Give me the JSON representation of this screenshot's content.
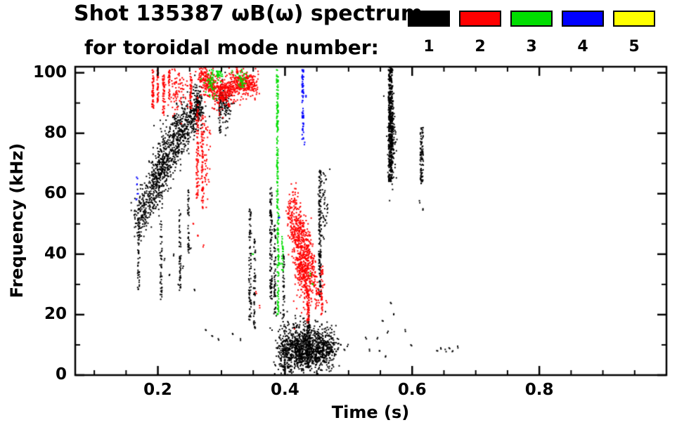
{
  "title": {
    "line1": "Shot 135387 ωB(ω) spectrum",
    "line2": "for toroidal mode number:"
  },
  "legend": {
    "modes": [
      {
        "label": "1",
        "color": "#000000"
      },
      {
        "label": "2",
        "color": "#ff0000"
      },
      {
        "label": "3",
        "color": "#00dd00"
      },
      {
        "label": "4",
        "color": "#0000ff"
      },
      {
        "label": "5",
        "color": "#ffff00"
      }
    ]
  },
  "axes": {
    "xlabel": "Time (s)",
    "ylabel": "Frequency (kHz)",
    "xlim": [
      0.07,
      1.0
    ],
    "ylim": [
      0,
      102
    ],
    "x_major": [
      {
        "v": 0.2,
        "label": "0.2"
      },
      {
        "v": 0.4,
        "label": "0.4"
      },
      {
        "v": 0.6,
        "label": "0.6"
      },
      {
        "v": 0.8,
        "label": "0.8"
      }
    ],
    "y_major": [
      {
        "v": 0,
        "label": "0"
      },
      {
        "v": 20,
        "label": "20"
      },
      {
        "v": 40,
        "label": "40"
      },
      {
        "v": 60,
        "label": "60"
      },
      {
        "v": 80,
        "label": "80"
      },
      {
        "v": 100,
        "label": "100"
      }
    ],
    "x_minor_step": 0.05,
    "y_minor_step": 10
  },
  "chart_data": {
    "type": "scatter",
    "title": "Shot 135387 ωB(ω) spectrum for toroidal mode number: 1-5",
    "xlabel": "Time (s)",
    "ylabel": "Frequency (kHz)",
    "xlim": [
      0.07,
      1.0
    ],
    "ylim": [
      0,
      100
    ],
    "grid": false,
    "legend_position": "top-right",
    "series": [
      {
        "name": "n=1",
        "color": "#000000",
        "clusters": [
          {
            "shape": "vline",
            "x": 0.17,
            "w": 0.004,
            "y0": 28,
            "y1": 60,
            "n": 60
          },
          {
            "shape": "band",
            "x0": 0.166,
            "y0": 50,
            "x1": 0.2,
            "y1": 64,
            "sx": 0.004,
            "sy": 4,
            "n": 260
          },
          {
            "shape": "band",
            "x0": 0.195,
            "y0": 65,
            "x1": 0.245,
            "y1": 84,
            "sx": 0.005,
            "sy": 4.5,
            "n": 620
          },
          {
            "shape": "band",
            "x0": 0.245,
            "y0": 82,
            "x1": 0.266,
            "y1": 88,
            "sx": 0.003,
            "sy": 3,
            "n": 150
          },
          {
            "shape": "blob",
            "cx": 0.262,
            "cy": 89,
            "rx": 0.005,
            "ry": 3.5,
            "n": 120
          },
          {
            "shape": "vline",
            "x": 0.205,
            "w": 0.003,
            "y0": 25,
            "y1": 50,
            "n": 45
          },
          {
            "shape": "vline",
            "x": 0.235,
            "w": 0.003,
            "y0": 28,
            "y1": 55,
            "n": 50
          },
          {
            "shape": "vline",
            "x": 0.248,
            "w": 0.0025,
            "y0": 40,
            "y1": 62,
            "n": 40
          },
          {
            "shape": "dots",
            "points": [
              [
                0.21,
                38
              ],
              [
                0.218,
                33
              ],
              [
                0.225,
                40
              ],
              [
                0.232,
                30
              ],
              [
                0.24,
                36
              ],
              [
                0.252,
                42
              ],
              [
                0.258,
                28
              ]
            ]
          },
          {
            "shape": "blob",
            "cx": 0.305,
            "cy": 90,
            "rx": 0.006,
            "ry": 4,
            "n": 110
          },
          {
            "shape": "vline",
            "x": 0.298,
            "w": 0.003,
            "y0": 80,
            "y1": 94,
            "n": 40
          },
          {
            "shape": "dots",
            "points": [
              [
                0.275,
                15
              ],
              [
                0.285,
                13
              ],
              [
                0.295,
                12
              ],
              [
                0.318,
                13.5
              ],
              [
                0.33,
                12
              ]
            ]
          },
          {
            "shape": "vline",
            "x": 0.345,
            "w": 0.004,
            "y0": 18,
            "y1": 55,
            "n": 85
          },
          {
            "shape": "vline",
            "x": 0.352,
            "w": 0.003,
            "y0": 15,
            "y1": 45,
            "n": 55
          },
          {
            "shape": "vline",
            "x": 0.378,
            "w": 0.0035,
            "y0": 25,
            "y1": 62,
            "n": 100
          },
          {
            "shape": "vline",
            "x": 0.384,
            "w": 0.003,
            "y0": 20,
            "y1": 50,
            "n": 60
          },
          {
            "shape": "vline",
            "x": 0.398,
            "w": 0.0025,
            "y0": 15,
            "y1": 40,
            "n": 40
          },
          {
            "shape": "band",
            "x0": 0.392,
            "y0": 7,
            "x1": 0.478,
            "y1": 9,
            "sx": 0.004,
            "sy": 3.2,
            "n": 850
          },
          {
            "shape": "blob",
            "cx": 0.428,
            "cy": 10,
            "rx": 0.02,
            "ry": 4.5,
            "n": 400
          },
          {
            "shape": "vline",
            "x": 0.437,
            "w": 0.004,
            "y0": 2,
            "y1": 18,
            "n": 70
          },
          {
            "shape": "vline",
            "x": 0.455,
            "w": 0.004,
            "y0": 25,
            "y1": 68,
            "n": 150
          },
          {
            "shape": "blob",
            "cx": 0.462,
            "cy": 56,
            "rx": 0.004,
            "ry": 6,
            "n": 50
          },
          {
            "shape": "dots",
            "points": [
              [
                0.484,
                9
              ],
              [
                0.488,
                10
              ],
              [
                0.493,
                8.5
              ],
              [
                0.498,
                9.5
              ]
            ]
          },
          {
            "shape": "vline",
            "x": 0.566,
            "w": 0.006,
            "y0": 64,
            "y1": 102,
            "n": 260,
            "s": 2.5
          },
          {
            "shape": "blob",
            "cx": 0.568,
            "cy": 78,
            "rx": 0.003,
            "ry": 7,
            "n": 140
          },
          {
            "shape": "vline",
            "x": 0.615,
            "w": 0.005,
            "y0": 63,
            "y1": 82,
            "n": 90
          },
          {
            "shape": "dots",
            "points": [
              [
                0.545,
                12
              ],
              [
                0.549,
                8
              ],
              [
                0.553,
                18
              ],
              [
                0.558,
                6
              ],
              [
                0.561,
                14
              ],
              [
                0.566,
                24
              ],
              [
                0.571,
                20
              ],
              [
                0.589,
                15
              ],
              [
                0.598,
                10
              ],
              [
                0.612,
                57
              ],
              [
                0.617,
                55
              ],
              [
                0.528,
                12
              ],
              [
                0.533,
                8
              ]
            ]
          },
          {
            "shape": "dots",
            "points": [
              [
                0.64,
                8
              ],
              [
                0.645,
                9
              ],
              [
                0.652,
                8.5
              ],
              [
                0.658,
                9
              ],
              [
                0.664,
                8
              ],
              [
                0.672,
                9
              ]
            ]
          }
        ]
      },
      {
        "name": "n=2",
        "color": "#ff0000",
        "clusters": [
          {
            "shape": "vline",
            "x": 0.192,
            "w": 0.003,
            "y0": 88,
            "y1": 101,
            "n": 55
          },
          {
            "shape": "vline",
            "x": 0.2,
            "w": 0.0025,
            "y0": 90,
            "y1": 101,
            "n": 40
          },
          {
            "shape": "vline",
            "x": 0.209,
            "w": 0.003,
            "y0": 86,
            "y1": 100,
            "n": 50
          },
          {
            "shape": "vline",
            "x": 0.218,
            "w": 0.002,
            "y0": 92,
            "y1": 101,
            "n": 30
          },
          {
            "shape": "blob",
            "cx": 0.232,
            "cy": 93,
            "rx": 0.008,
            "ry": 4,
            "n": 85
          },
          {
            "shape": "vline",
            "x": 0.252,
            "w": 0.003,
            "y0": 88,
            "y1": 100,
            "n": 45
          },
          {
            "shape": "vline",
            "x": 0.262,
            "w": 0.0035,
            "y0": 58,
            "y1": 92,
            "n": 85
          },
          {
            "shape": "vline",
            "x": 0.27,
            "w": 0.003,
            "y0": 55,
            "y1": 86,
            "n": 65
          },
          {
            "shape": "blob",
            "cx": 0.274,
            "cy": 72,
            "rx": 0.004,
            "ry": 7,
            "n": 60
          },
          {
            "shape": "dots",
            "points": [
              [
                0.256,
                50
              ],
              [
                0.263,
                46
              ],
              [
                0.272,
                43
              ]
            ]
          },
          {
            "shape": "band",
            "x0": 0.268,
            "y0": 99,
            "x1": 0.298,
            "y1": 93,
            "sx": 0.004,
            "sy": 2.4,
            "n": 280
          },
          {
            "shape": "band",
            "x0": 0.298,
            "y0": 93,
            "x1": 0.33,
            "y1": 97,
            "sx": 0.004,
            "sy": 2.4,
            "n": 280
          },
          {
            "shape": "band",
            "x0": 0.33,
            "y0": 97,
            "x1": 0.356,
            "y1": 96,
            "sx": 0.004,
            "sy": 2.0,
            "n": 190
          },
          {
            "shape": "dots",
            "points": [
              [
                0.289,
                88
              ],
              [
                0.297,
                86
              ],
              [
                0.312,
                89
              ],
              [
                0.355,
                27
              ],
              [
                0.36,
                23
              ]
            ]
          },
          {
            "shape": "band",
            "x0": 0.405,
            "y0": 54,
            "x1": 0.437,
            "y1": 28,
            "sx": 0.003,
            "sy": 3,
            "n": 260
          },
          {
            "shape": "band",
            "x0": 0.412,
            "y0": 58,
            "x1": 0.446,
            "y1": 36,
            "sx": 0.003,
            "sy": 3,
            "n": 200
          },
          {
            "shape": "band",
            "x0": 0.42,
            "y0": 48,
            "x1": 0.452,
            "y1": 25,
            "sx": 0.003,
            "sy": 2.5,
            "n": 150
          },
          {
            "shape": "blob",
            "cx": 0.428,
            "cy": 35,
            "rx": 0.007,
            "ry": 6,
            "n": 180
          },
          {
            "shape": "vline",
            "x": 0.436,
            "w": 0.004,
            "y0": 18,
            "y1": 28,
            "n": 60
          },
          {
            "shape": "vline",
            "x": 0.458,
            "w": 0.003,
            "y0": 20,
            "y1": 36,
            "n": 40
          },
          {
            "shape": "dots",
            "points": [
              [
                0.448,
                22
              ],
              [
                0.452,
                27
              ],
              [
                0.462,
                30
              ],
              [
                0.466,
                24
              ]
            ]
          }
        ]
      },
      {
        "name": "n=3",
        "color": "#00dd00",
        "clusters": [
          {
            "shape": "vline",
            "x": 0.388,
            "w": 0.0025,
            "y0": 55,
            "y1": 101,
            "n": 150
          },
          {
            "shape": "vline",
            "x": 0.389,
            "w": 0.0025,
            "y0": 20,
            "y1": 55,
            "n": 90
          },
          {
            "shape": "vline",
            "x": 0.396,
            "w": 0.002,
            "y0": 34,
            "y1": 46,
            "n": 25
          },
          {
            "shape": "blob",
            "cx": 0.285,
            "cy": 97,
            "rx": 0.005,
            "ry": 2.5,
            "n": 55
          },
          {
            "shape": "blob",
            "cx": 0.297,
            "cy": 99,
            "rx": 0.003,
            "ry": 1.5,
            "n": 30
          },
          {
            "shape": "blob",
            "cx": 0.332,
            "cy": 98,
            "rx": 0.004,
            "ry": 2,
            "n": 40
          },
          {
            "shape": "dots",
            "points": [
              [
                0.316,
                100
              ],
              [
                0.44,
                33
              ],
              [
                0.444,
                30
              ],
              [
                0.392,
                37
              ],
              [
                0.35,
                40
              ]
            ]
          }
        ]
      },
      {
        "name": "n=4",
        "color": "#0000ff",
        "clusters": [
          {
            "shape": "dots",
            "points": [
              [
                0.167,
                63
              ],
              [
                0.169,
                60
              ],
              [
                0.168,
                65
              ],
              [
                0.166,
                58
              ]
            ]
          },
          {
            "shape": "vline",
            "x": 0.428,
            "w": 0.0025,
            "y0": 78,
            "y1": 101,
            "n": 70
          },
          {
            "shape": "dots",
            "points": [
              [
                0.431,
                77
              ],
              [
                0.433,
                92
              ],
              [
                0.39,
                52
              ]
            ]
          }
        ]
      },
      {
        "name": "n=5",
        "color": "#ffff00",
        "clusters": []
      }
    ]
  }
}
